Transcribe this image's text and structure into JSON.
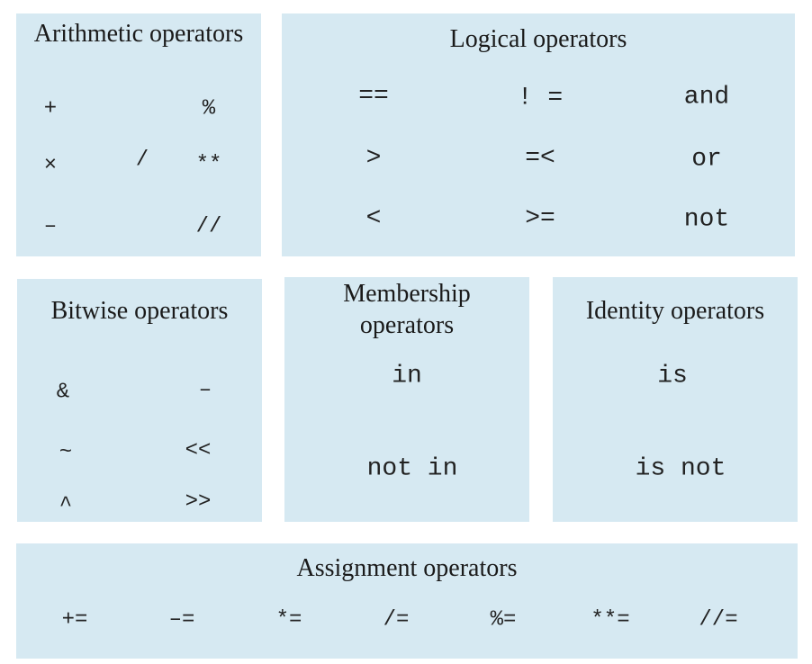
{
  "arithmetic": {
    "title": "Arithmetic operators",
    "ops": [
      "+",
      "%",
      "×",
      "/",
      "**",
      "–",
      "//"
    ]
  },
  "logical": {
    "title": "Logical operators",
    "ops": [
      "==",
      "! =",
      "and",
      ">",
      "=<",
      "or",
      "<",
      ">=",
      "not"
    ]
  },
  "bitwise": {
    "title": "Bitwise operators",
    "ops": [
      "&",
      "–",
      "~",
      "<<",
      "^",
      ">>"
    ]
  },
  "membership": {
    "title_line1": "Membership",
    "title_line2": "operators",
    "ops": [
      "in",
      "not in"
    ]
  },
  "identity": {
    "title": "Identity operators",
    "ops": [
      "is",
      "is not"
    ]
  },
  "assignment": {
    "title": "Assignment operators",
    "ops": [
      "+=",
      "–=",
      "*=",
      "/=",
      "%=",
      "**=",
      "//="
    ]
  }
}
